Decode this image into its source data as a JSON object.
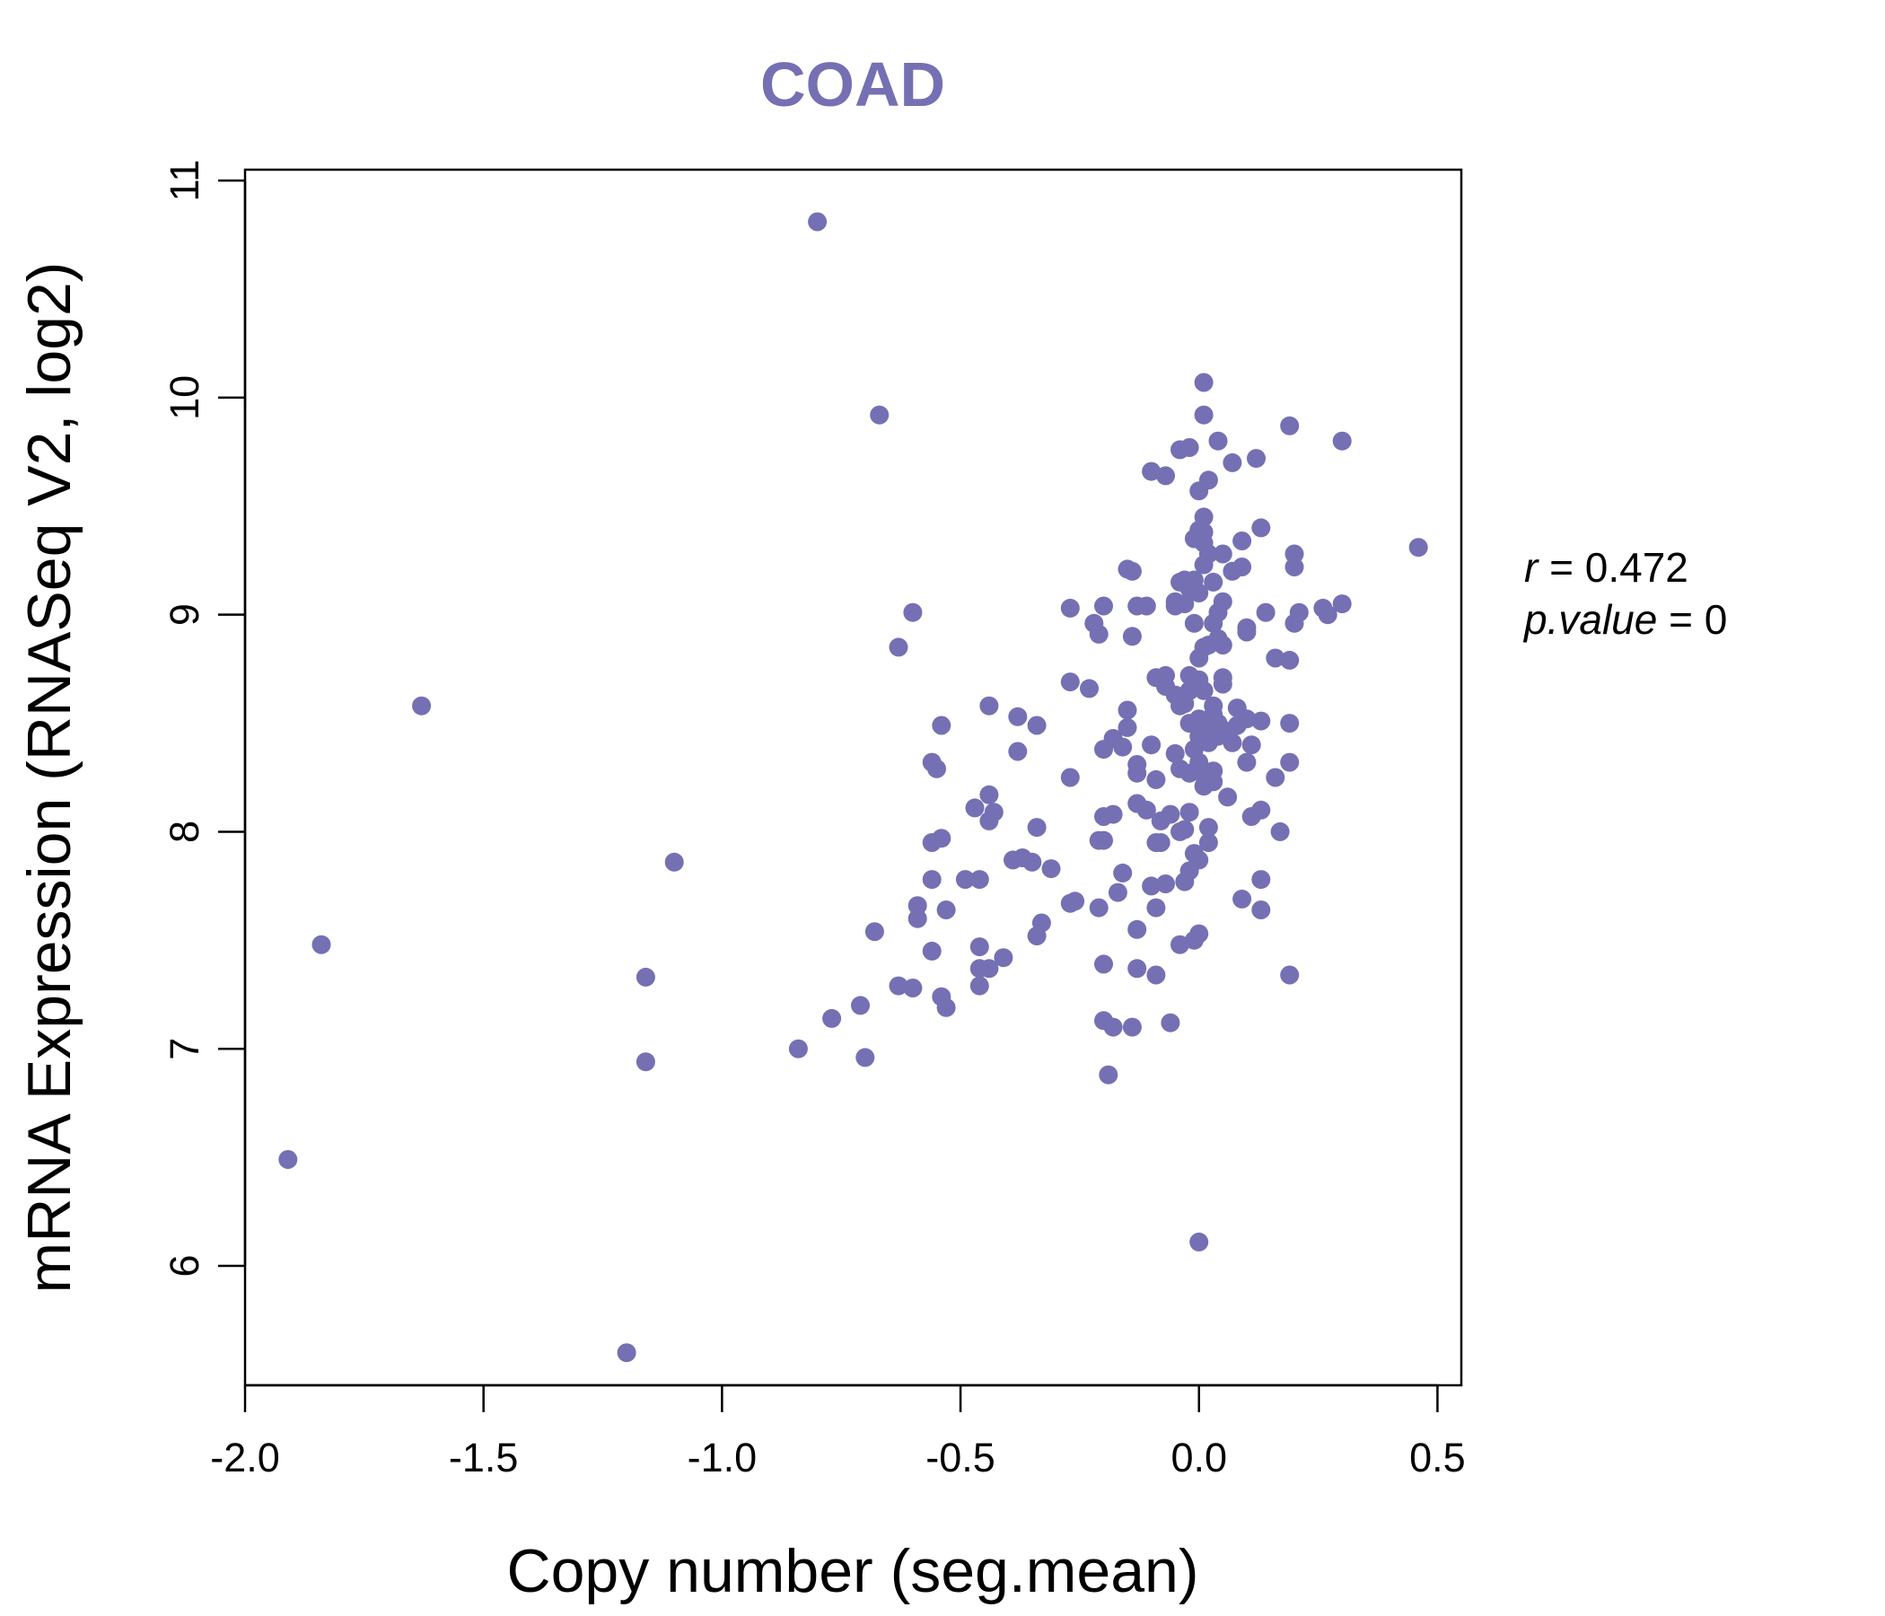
{
  "chart_data": {
    "type": "scatter",
    "title": "COAD",
    "xlabel": "Copy number (seg.mean)",
    "ylabel": "mRNA Expression (RNASeq V2, log2)",
    "xlim": [
      -2.0,
      0.55
    ],
    "ylim": [
      5.45,
      11.05
    ],
    "xticks": [
      -2.0,
      -1.5,
      -1.0,
      -0.5,
      0.0,
      0.5
    ],
    "xtick_labels": [
      "-2.0",
      "-1.5",
      "-1.0",
      "-0.5",
      "0.0",
      "0.5"
    ],
    "yticks": [
      6,
      7,
      8,
      9,
      10,
      11
    ],
    "ytick_labels": [
      "6",
      "7",
      "8",
      "9",
      "10",
      "11"
    ],
    "grid": false,
    "color": "#7570b3",
    "stats": {
      "r_label": "r",
      "r_value": "0.472",
      "p_label": "p.value",
      "p_value": "0"
    },
    "points": [
      [
        -0.8,
        10.81
      ],
      [
        -0.67,
        9.92
      ],
      [
        -1.63,
        8.58
      ],
      [
        -1.1,
        7.86
      ],
      [
        -1.84,
        7.48
      ],
      [
        -1.16,
        7.33
      ],
      [
        -1.16,
        6.94
      ],
      [
        -1.91,
        6.49
      ],
      [
        -1.2,
        5.6
      ],
      [
        -0.6,
        9.01
      ],
      [
        -0.63,
        8.85
      ],
      [
        -0.84,
        7.0
      ],
      [
        -0.7,
        6.96
      ],
      [
        -0.68,
        7.54
      ],
      [
        -0.77,
        7.14
      ],
      [
        -0.71,
        7.2
      ],
      [
        -0.63,
        7.29
      ],
      [
        -0.6,
        7.28
      ],
      [
        -0.54,
        7.24
      ],
      [
        -0.53,
        7.19
      ],
      [
        -0.56,
        7.45
      ],
      [
        -0.59,
        7.6
      ],
      [
        -0.59,
        7.66
      ],
      [
        -0.53,
        7.64
      ],
      [
        -0.56,
        7.78
      ],
      [
        -0.56,
        7.95
      ],
      [
        -0.54,
        7.97
      ],
      [
        -0.56,
        8.32
      ],
      [
        -0.55,
        8.29
      ],
      [
        -0.54,
        8.49
      ],
      [
        -0.44,
        8.58
      ],
      [
        -0.38,
        8.53
      ],
      [
        -0.34,
        8.49
      ],
      [
        -0.38,
        8.37
      ],
      [
        -0.44,
        8.17
      ],
      [
        -0.47,
        8.11
      ],
      [
        -0.43,
        8.09
      ],
      [
        -0.44,
        8.05
      ],
      [
        -0.34,
        8.02
      ],
      [
        -0.39,
        7.87
      ],
      [
        -0.37,
        7.88
      ],
      [
        -0.35,
        7.86
      ],
      [
        -0.31,
        7.83
      ],
      [
        -0.49,
        7.78
      ],
      [
        -0.46,
        7.78
      ],
      [
        -0.33,
        7.58
      ],
      [
        -0.34,
        7.52
      ],
      [
        -0.46,
        7.47
      ],
      [
        -0.44,
        7.37
      ],
      [
        -0.46,
        7.37
      ],
      [
        -0.41,
        7.42
      ],
      [
        -0.46,
        7.29
      ],
      [
        -0.27,
        7.67
      ],
      [
        -0.26,
        7.68
      ],
      [
        -0.27,
        8.25
      ],
      [
        -0.27,
        8.69
      ],
      [
        -0.23,
        8.66
      ],
      [
        -0.27,
        9.03
      ],
      [
        -0.2,
        9.04
      ],
      [
        -0.22,
        8.96
      ],
      [
        -0.21,
        8.91
      ],
      [
        -0.15,
        9.21
      ],
      [
        -0.14,
        9.2
      ],
      [
        -0.13,
        9.04
      ],
      [
        -0.11,
        9.04
      ],
      [
        -0.14,
        8.9
      ],
      [
        -0.1,
        9.66
      ],
      [
        -0.07,
        9.64
      ],
      [
        -0.04,
        9.76
      ],
      [
        -0.02,
        9.77
      ],
      [
        0.01,
        10.07
      ],
      [
        0.01,
        9.92
      ],
      [
        0.04,
        9.8
      ],
      [
        0.07,
        9.7
      ],
      [
        0.12,
        9.72
      ],
      [
        0.19,
        9.87
      ],
      [
        0.3,
        9.8
      ],
      [
        0.46,
        9.31
      ],
      [
        0.3,
        9.05
      ],
      [
        0.26,
        9.03
      ],
      [
        0.27,
        9.0
      ],
      [
        0.21,
        9.01
      ],
      [
        0.2,
        8.96
      ],
      [
        0.2,
        9.28
      ],
      [
        0.2,
        9.22
      ],
      [
        0.13,
        9.4
      ],
      [
        0.09,
        9.34
      ],
      [
        0.09,
        9.22
      ],
      [
        0.1,
        8.92
      ],
      [
        0.1,
        8.94
      ],
      [
        0.14,
        9.01
      ],
      [
        0.16,
        8.8
      ],
      [
        0.19,
        8.79
      ],
      [
        0.19,
        8.5
      ],
      [
        0.13,
        8.51
      ],
      [
        0.1,
        8.52
      ],
      [
        0.11,
        8.4
      ],
      [
        0.1,
        8.32
      ],
      [
        0.19,
        8.32
      ],
      [
        0.16,
        8.25
      ],
      [
        0.06,
        8.16
      ],
      [
        0.13,
        8.1
      ],
      [
        0.11,
        8.07
      ],
      [
        0.17,
        8.0
      ],
      [
        0.13,
        7.78
      ],
      [
        0.09,
        7.69
      ],
      [
        0.13,
        7.64
      ],
      [
        0.19,
        7.34
      ],
      [
        -0.18,
        8.43
      ],
      [
        -0.2,
        8.38
      ],
      [
        -0.16,
        8.39
      ],
      [
        -0.15,
        8.48
      ],
      [
        -0.15,
        8.56
      ],
      [
        -0.13,
        8.31
      ],
      [
        -0.13,
        8.27
      ],
      [
        -0.1,
        8.4
      ],
      [
        -0.09,
        8.24
      ],
      [
        -0.2,
        8.07
      ],
      [
        -0.18,
        8.08
      ],
      [
        -0.13,
        8.13
      ],
      [
        -0.11,
        8.1
      ],
      [
        -0.09,
        7.95
      ],
      [
        -0.08,
        7.95
      ],
      [
        -0.08,
        8.05
      ],
      [
        -0.06,
        8.08
      ],
      [
        -0.2,
        7.96
      ],
      [
        -0.21,
        7.96
      ],
      [
        -0.16,
        7.81
      ],
      [
        -0.17,
        7.72
      ],
      [
        -0.21,
        7.65
      ],
      [
        -0.13,
        7.55
      ],
      [
        -0.1,
        7.75
      ],
      [
        -0.07,
        7.76
      ],
      [
        -0.09,
        7.65
      ],
      [
        -0.03,
        7.77
      ],
      [
        -0.13,
        7.37
      ],
      [
        -0.09,
        7.34
      ],
      [
        -0.04,
        7.48
      ],
      [
        -0.01,
        7.5
      ],
      [
        0.0,
        7.53
      ],
      [
        -0.2,
        7.39
      ],
      [
        -0.2,
        7.13
      ],
      [
        -0.18,
        7.1
      ],
      [
        -0.14,
        7.1
      ],
      [
        -0.06,
        7.12
      ],
      [
        -0.19,
        6.88
      ],
      [
        0.0,
        6.11
      ],
      [
        -0.05,
        8.36
      ],
      [
        -0.04,
        8.29
      ],
      [
        -0.02,
        8.27
      ],
      [
        0.0,
        8.32
      ],
      [
        0.01,
        8.26
      ],
      [
        0.01,
        8.21
      ],
      [
        0.03,
        8.23
      ],
      [
        -0.01,
        8.38
      ],
      [
        0.02,
        8.41
      ],
      [
        0.04,
        8.44
      ],
      [
        0.05,
        8.47
      ],
      [
        0.07,
        8.41
      ],
      [
        0.08,
        8.57
      ],
      [
        -0.05,
        8.63
      ],
      [
        -0.07,
        8.67
      ],
      [
        -0.09,
        8.71
      ],
      [
        -0.07,
        8.72
      ],
      [
        -0.03,
        8.59
      ],
      [
        -0.02,
        8.65
      ],
      [
        0.0,
        8.7
      ],
      [
        0.01,
        8.65
      ],
      [
        0.03,
        8.58
      ],
      [
        0.05,
        8.71
      ],
      [
        0.05,
        8.68
      ],
      [
        0.0,
        8.8
      ],
      [
        0.01,
        8.85
      ],
      [
        0.02,
        8.86
      ],
      [
        0.04,
        8.89
      ],
      [
        0.05,
        8.86
      ],
      [
        0.03,
        8.96
      ],
      [
        0.05,
        9.06
      ],
      [
        0.04,
        9.01
      ],
      [
        0.03,
        9.15
      ],
      [
        0.0,
        9.1
      ],
      [
        -0.01,
        9.16
      ],
      [
        -0.02,
        9.12
      ],
      [
        -0.03,
        9.16
      ],
      [
        -0.04,
        9.15
      ],
      [
        -0.05,
        9.06
      ],
      [
        -0.05,
        9.04
      ],
      [
        -0.03,
        9.05
      ],
      [
        0.01,
        9.23
      ],
      [
        0.02,
        9.28
      ],
      [
        0.01,
        9.33
      ],
      [
        0.0,
        9.39
      ],
      [
        0.01,
        9.45
      ],
      [
        0.0,
        9.57
      ],
      [
        0.02,
        9.62
      ],
      [
        -0.01,
        9.35
      ],
      [
        0.01,
        9.38
      ],
      [
        0.05,
        9.28
      ],
      [
        0.07,
        9.2
      ],
      [
        -0.01,
        8.96
      ],
      [
        -0.02,
        8.72
      ],
      [
        0.0,
        8.52
      ],
      [
        0.02,
        8.49
      ],
      [
        0.0,
        8.44
      ],
      [
        -0.02,
        8.5
      ],
      [
        -0.04,
        8.58
      ],
      [
        0.03,
        8.54
      ],
      [
        0.03,
        8.28
      ],
      [
        -0.02,
        8.09
      ],
      [
        -0.03,
        8.01
      ],
      [
        0.02,
        8.02
      ],
      [
        0.02,
        7.95
      ],
      [
        -0.01,
        7.9
      ],
      [
        0.0,
        7.87
      ],
      [
        -0.02,
        7.82
      ],
      [
        -0.04,
        8.0
      ],
      [
        0.08,
        8.49
      ],
      [
        0.04,
        8.5
      ]
    ]
  }
}
